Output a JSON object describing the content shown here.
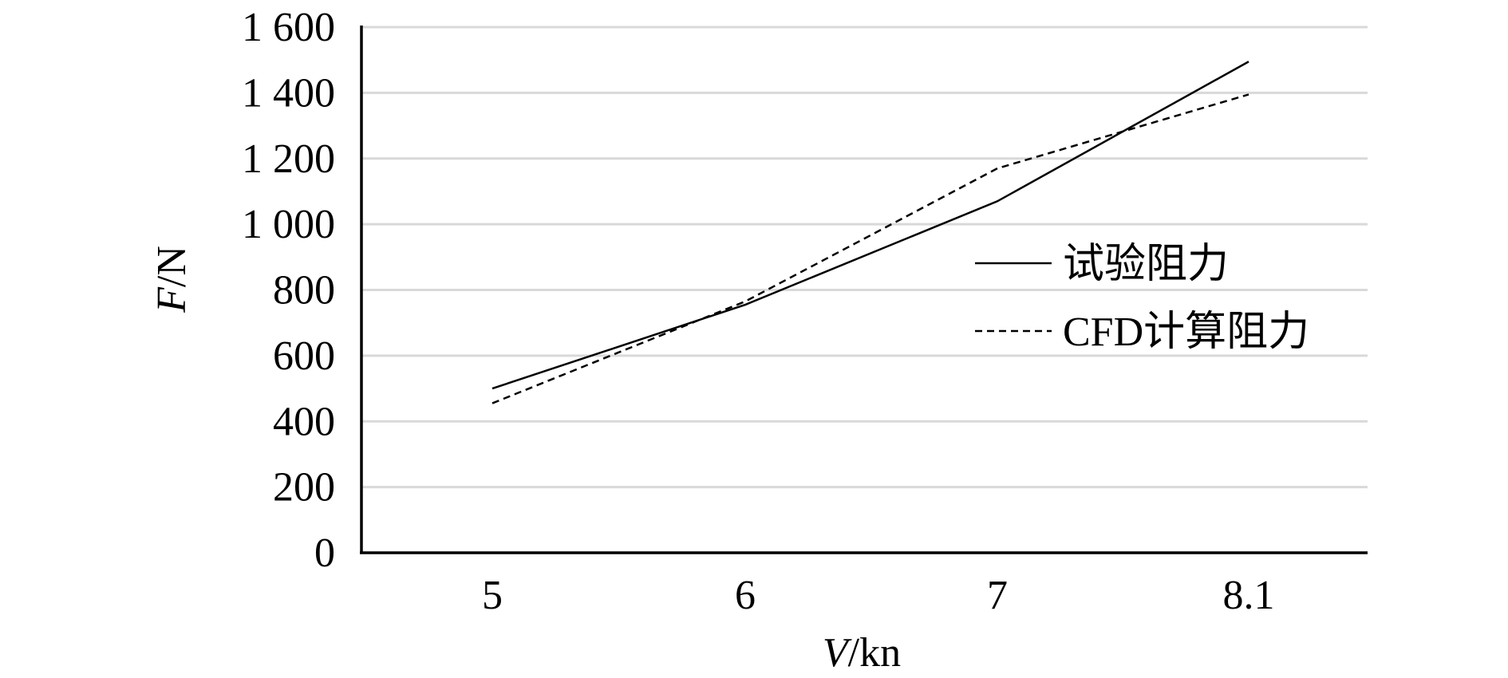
{
  "chart_data": {
    "type": "line",
    "categories": [
      "5",
      "6",
      "7",
      "8.1"
    ],
    "series": [
      {
        "name": "试验阻力",
        "values": [
          500,
          755,
          1070,
          1495
        ],
        "dash": "solid",
        "color": "#000000"
      },
      {
        "name": "CFD计算阻力",
        "values": [
          455,
          765,
          1170,
          1395
        ],
        "dash": "dashed",
        "color": "#000000"
      }
    ],
    "title": "",
    "xlabel": {
      "italic": "V",
      "rest": "/kn"
    },
    "ylabel": {
      "italic": "F",
      "rest": "/N"
    },
    "ylim": [
      0,
      1600
    ],
    "yticks": [
      "0",
      "200",
      "400",
      "600",
      "800",
      "1 000",
      "1 200",
      "1 400",
      "1 600"
    ],
    "grid": true,
    "gridColor": "#d9d9d9",
    "legend_position": "right"
  }
}
